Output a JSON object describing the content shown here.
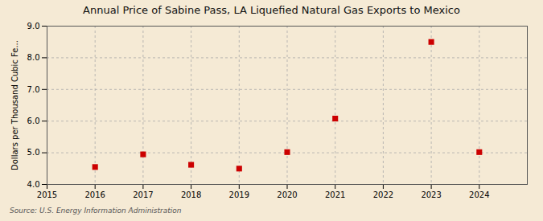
{
  "chart_data": {
    "type": "scatter",
    "title": "Annual Price of Sabine Pass, LA Liquefied Natural Gas Exports to Mexico",
    "ylabel": "Dollars per Thousand Cubic Fe...",
    "source": "Source: U.S. Energy Information Administration",
    "x": [
      2016,
      2017,
      2018,
      2019,
      2020,
      2021,
      2023,
      2024
    ],
    "values": [
      4.55,
      4.95,
      4.62,
      4.5,
      5.02,
      6.08,
      8.5,
      5.02
    ],
    "color": "#cc0000",
    "marker": "square",
    "xlim": [
      2015,
      2025
    ],
    "ylim": [
      4.0,
      9.0
    ],
    "xticks": [
      2015,
      2016,
      2017,
      2018,
      2019,
      2020,
      2021,
      2022,
      2023,
      2024
    ],
    "yticks": [
      {
        "value": 4.0,
        "label": "4.0"
      },
      {
        "value": 5.0,
        "label": "5.0"
      },
      {
        "value": 6.0,
        "label": "6.0"
      },
      {
        "value": 7.0,
        "label": "7.0"
      },
      {
        "value": 8.0,
        "label": "8.0"
      },
      {
        "value": 9.0,
        "label": "9.0"
      }
    ],
    "grid": true
  }
}
